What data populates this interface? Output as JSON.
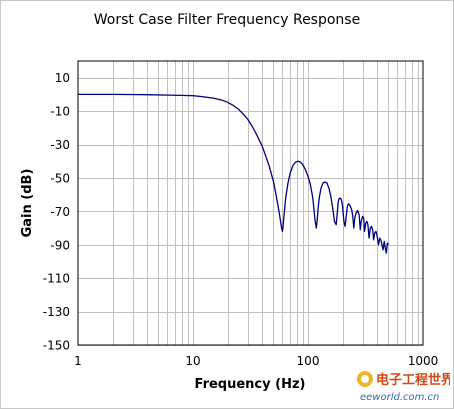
{
  "chart_data": {
    "type": "line",
    "title": "Worst Case Filter Frequency Response",
    "xlabel": "Frequency (Hz)",
    "ylabel": "Gain (dB)",
    "x_scale": "log",
    "xlim": [
      1,
      1000
    ],
    "ylim": [
      -150,
      20
    ],
    "x_ticks": [
      1,
      10,
      100,
      1000
    ],
    "y_ticks": [
      10,
      -10,
      -30,
      -50,
      -70,
      -90,
      -110,
      -130,
      -150
    ],
    "grid": true,
    "line_color": "#000080",
    "series": [
      {
        "x": [
          1,
          2,
          4,
          6,
          8,
          10,
          12,
          15,
          18,
          20,
          22,
          25,
          28,
          30,
          33,
          36,
          40,
          43,
          46,
          50,
          53,
          56,
          58,
          59,
          60,
          62,
          64,
          67,
          70,
          74,
          78,
          82,
          86,
          90,
          95,
          100,
          105,
          110,
          115,
          118,
          120,
          123,
          126,
          130,
          135,
          140,
          146,
          152,
          158,
          164,
          170,
          176,
          180,
          183,
          186,
          190,
          195,
          200,
          205,
          210,
          215,
          220,
          225,
          232,
          240,
          245,
          250,
          255,
          262,
          270,
          278,
          285,
          290,
          298,
          305,
          310,
          318,
          325,
          332,
          340,
          348,
          356,
          365,
          372,
          380,
          390,
          400,
          410,
          420,
          430,
          440,
          450,
          460,
          470,
          480,
          490,
          500
        ],
        "y": [
          0,
          0,
          -0.2,
          -0.4,
          -0.6,
          -0.8,
          -1.3,
          -2.2,
          -3.5,
          -4.7,
          -6.3,
          -9,
          -12.5,
          -15,
          -19.5,
          -24.5,
          -31,
          -37,
          -43,
          -52,
          -61,
          -70,
          -77,
          -80,
          -82,
          -72,
          -62,
          -53,
          -47,
          -42.5,
          -40.5,
          -40,
          -40.5,
          -42,
          -45,
          -49,
          -54,
          -62,
          -75,
          -80,
          -76,
          -67,
          -61,
          -56,
          -53,
          -52.5,
          -53,
          -56,
          -61,
          -68,
          -76,
          -78,
          -70,
          -64.5,
          -62.5,
          -62,
          -63,
          -67,
          -76,
          -79,
          -73,
          -67,
          -65.5,
          -66.5,
          -69,
          -73,
          -80,
          -74,
          -71,
          -69.5,
          -72,
          -81,
          -76,
          -73,
          -74,
          -82,
          -77,
          -76,
          -78,
          -86,
          -80,
          -79,
          -81,
          -87,
          -83,
          -82,
          -85,
          -90,
          -86,
          -87,
          -90,
          -93,
          -88,
          -92,
          -95,
          -89,
          -90
        ]
      }
    ]
  },
  "watermark": {
    "cn_text": "电子工程世界",
    "en_text": "eeworld.com.cn"
  }
}
